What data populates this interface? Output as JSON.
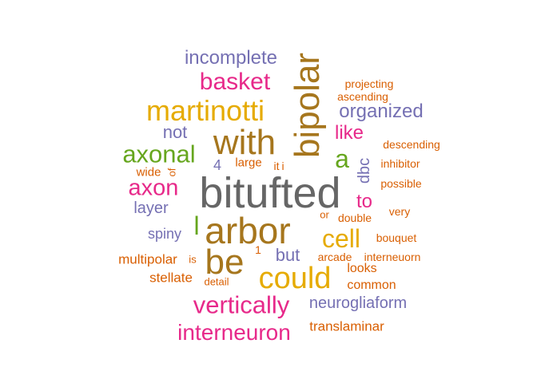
{
  "palette": {
    "gray": "#666666",
    "olive": "#a6761d",
    "gold": "#e6ab02",
    "magenta": "#e7298a",
    "purple": "#7570b3",
    "green": "#66a61e",
    "orange": "#d95f02"
  },
  "words": [
    {
      "text": "bitufted",
      "color": "gray"
    },
    {
      "text": "bipolar",
      "color": "olive"
    },
    {
      "text": "arbor",
      "color": "olive"
    },
    {
      "text": "with",
      "color": "olive"
    },
    {
      "text": "be",
      "color": "olive"
    },
    {
      "text": "could",
      "color": "gold"
    },
    {
      "text": "martinotti",
      "color": "gold"
    },
    {
      "text": "cell",
      "color": "gold"
    },
    {
      "text": "a",
      "color": "green"
    },
    {
      "text": "axonal",
      "color": "green"
    },
    {
      "text": "vertically",
      "color": "magenta"
    },
    {
      "text": "basket",
      "color": "magenta"
    },
    {
      "text": "axon",
      "color": "magenta"
    },
    {
      "text": "interneuron",
      "color": "magenta"
    },
    {
      "text": "like",
      "color": "magenta"
    },
    {
      "text": "to",
      "color": "magenta"
    },
    {
      "text": "incomplete",
      "color": "purple"
    },
    {
      "text": "organized",
      "color": "purple"
    },
    {
      "text": "neurogliaform",
      "color": "purple"
    },
    {
      "text": "not",
      "color": "purple"
    },
    {
      "text": "dbc",
      "color": "purple"
    },
    {
      "text": "but",
      "color": "purple"
    },
    {
      "text": "layer",
      "color": "purple"
    },
    {
      "text": "spiny",
      "color": "purple"
    },
    {
      "text": "4",
      "color": "purple"
    },
    {
      "text": "l",
      "color": "green"
    },
    {
      "text": "multipolar",
      "color": "orange"
    },
    {
      "text": "stellate",
      "color": "orange"
    },
    {
      "text": "translaminar",
      "color": "orange"
    },
    {
      "text": "projecting",
      "color": "orange"
    },
    {
      "text": "ascending",
      "color": "orange"
    },
    {
      "text": "descending",
      "color": "orange"
    },
    {
      "text": "inhibitor",
      "color": "orange"
    },
    {
      "text": "possible",
      "color": "orange"
    },
    {
      "text": "very",
      "color": "orange"
    },
    {
      "text": "double",
      "color": "orange"
    },
    {
      "text": "or",
      "color": "orange"
    },
    {
      "text": "bouquet",
      "color": "orange"
    },
    {
      "text": "arcade",
      "color": "orange"
    },
    {
      "text": "interneuorn",
      "color": "orange"
    },
    {
      "text": "looks",
      "color": "orange"
    },
    {
      "text": "common",
      "color": "orange"
    },
    {
      "text": "large",
      "color": "orange"
    },
    {
      "text": "wide",
      "color": "orange"
    },
    {
      "text": "of",
      "color": "orange"
    },
    {
      "text": "it",
      "color": "orange"
    },
    {
      "text": "i",
      "color": "orange"
    },
    {
      "text": "is",
      "color": "orange"
    },
    {
      "text": "1",
      "color": "orange"
    },
    {
      "text": "detail",
      "color": "orange"
    }
  ]
}
